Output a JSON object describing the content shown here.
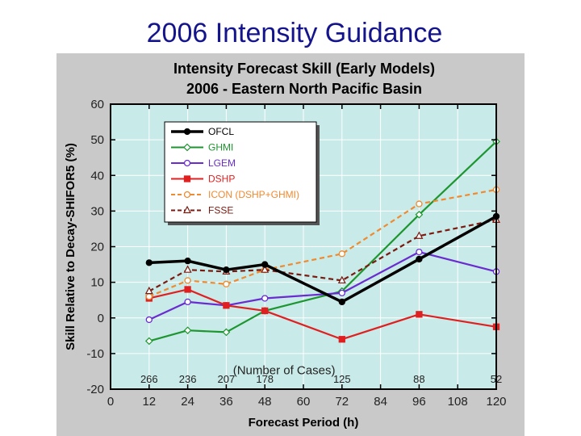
{
  "slide": {
    "title": "2006 Intensity Guidance"
  },
  "chart_data": {
    "type": "line",
    "title": "Intensity Forecast Skill (Early Models)",
    "subtitle": "2006 - Eastern North Pacific Basin",
    "xlabel": "Forecast Period (h)",
    "ylabel": "Skill Relative to Decay-SHIFOR5 (%)",
    "xlim": [
      0,
      120
    ],
    "ylim": [
      -20,
      60
    ],
    "x_ticks": [
      0,
      12,
      24,
      36,
      48,
      60,
      72,
      84,
      96,
      108,
      120
    ],
    "y_ticks": [
      -20,
      -10,
      0,
      10,
      20,
      30,
      40,
      50,
      60
    ],
    "x": [
      12,
      24,
      36,
      48,
      72,
      96,
      120
    ],
    "grid": true,
    "legend_position": "upper-left",
    "series": [
      {
        "name": "OFCL",
        "color": "#000000",
        "style": "solid",
        "marker": "circle-filled",
        "values": [
          15.5,
          16,
          13.5,
          15,
          4.5,
          16.5,
          28.5
        ]
      },
      {
        "name": "GHMI",
        "color": "#1e9630",
        "style": "solid",
        "marker": "diamond-open",
        "values": [
          -6.5,
          -3.5,
          -4,
          2,
          7.5,
          29,
          49.5
        ]
      },
      {
        "name": "LGEM",
        "color": "#6a2bd0",
        "style": "solid",
        "marker": "circle-open",
        "values": [
          -0.5,
          4.5,
          3.5,
          5.5,
          7,
          18.5,
          13
        ]
      },
      {
        "name": "DSHP",
        "color": "#e02020",
        "style": "solid",
        "marker": "square-filled",
        "values": [
          5.5,
          8,
          3.5,
          2,
          -6,
          1,
          -2.5
        ]
      },
      {
        "name": "ICON (DSHP+GHMI)",
        "color": "#f08a30",
        "style": "dashed",
        "marker": "circle-open",
        "values": [
          6,
          10.5,
          9.5,
          13.5,
          18,
          32,
          36
        ]
      },
      {
        "name": "FSSE",
        "color": "#7a1a10",
        "style": "dashed",
        "marker": "triangle-open",
        "values": [
          7.5,
          13.5,
          13,
          13.5,
          10.5,
          23,
          27.5
        ]
      }
    ],
    "cases_caption": "(Number of Cases)",
    "case_counts": [
      {
        "x": 12,
        "label": "266"
      },
      {
        "x": 24,
        "label": "236"
      },
      {
        "x": 36,
        "label": "207"
      },
      {
        "x": 48,
        "label": "178"
      },
      {
        "x": 72,
        "label": "125"
      },
      {
        "x": 96,
        "label": "88"
      },
      {
        "x": 120,
        "label": "52"
      }
    ]
  },
  "colors": {
    "plot_background": "#c8eae8",
    "panel_background": "#c9c9c9",
    "title_color": "#14148c",
    "grid_color": "#ffffff"
  }
}
